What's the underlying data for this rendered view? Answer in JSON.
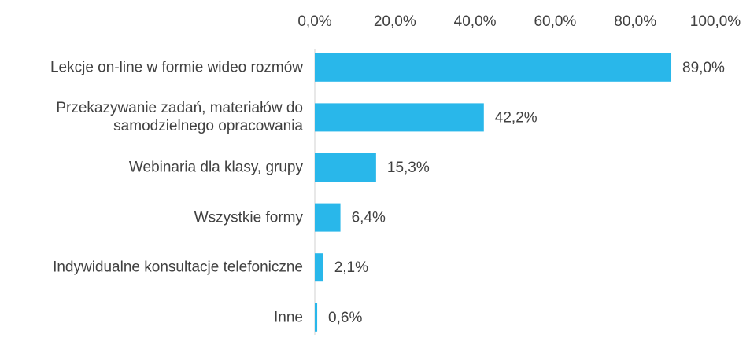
{
  "chart_data": {
    "type": "bar",
    "orientation": "horizontal",
    "categories": [
      "Lekcje on-line w formie wideo rozmów",
      "Przekazywanie zadań, materiałów do samodzielnego opracowania",
      "Webinaria dla klasy, grupy",
      "Wszystkie formy",
      "Indywidualne konsultacje telefoniczne",
      "Inne"
    ],
    "values": [
      89.0,
      42.2,
      15.3,
      6.4,
      2.1,
      0.6
    ],
    "value_labels": [
      "89,0%",
      "42,2%",
      "15,3%",
      "6,4%",
      "2,1%",
      "0,6%"
    ],
    "color": "#29b7ea",
    "xlim": [
      0,
      100
    ],
    "xticks": [
      {
        "value": 0,
        "label": "0,0%"
      },
      {
        "value": 20,
        "label": "20,0%"
      },
      {
        "value": 40,
        "label": "40,0%"
      },
      {
        "value": 60,
        "label": "60,0%"
      },
      {
        "value": 80,
        "label": "80,0%"
      },
      {
        "value": 100,
        "label": "100,0%"
      }
    ],
    "grid": false
  }
}
